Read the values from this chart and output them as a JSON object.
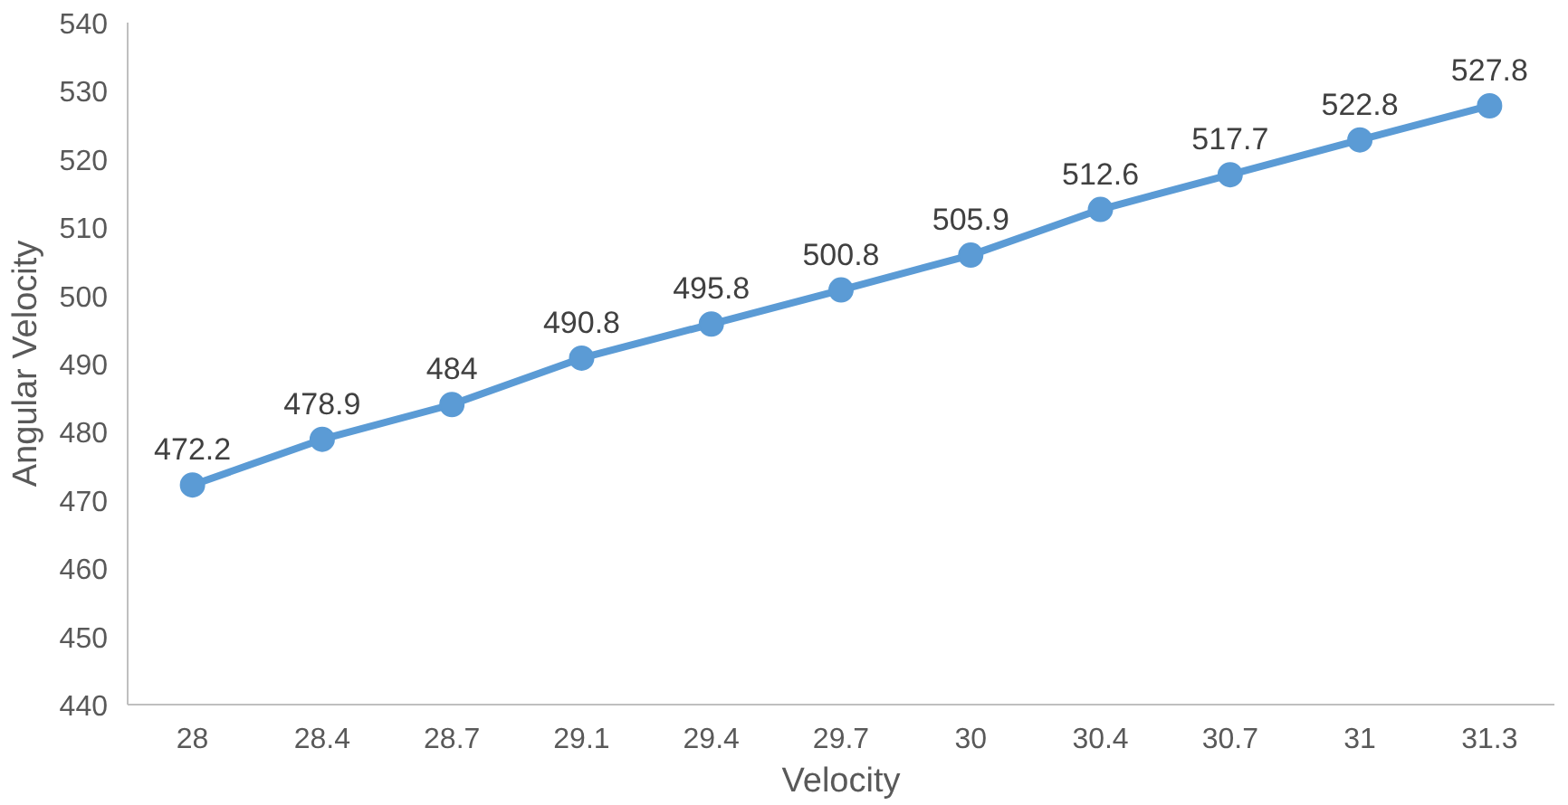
{
  "chart_data": {
    "type": "line",
    "xlabel": "Velocity",
    "ylabel": "Angular Velocity",
    "categories": [
      "28",
      "28.4",
      "28.7",
      "29.1",
      "29.4",
      "29.7",
      "30",
      "30.4",
      "30.7",
      "31",
      "31.3"
    ],
    "series": [
      {
        "color": "#5b9bd5",
        "values": [
          472.2,
          478.9,
          484,
          490.8,
          495.8,
          500.8,
          505.9,
          512.6,
          517.7,
          522.8,
          527.8
        ]
      }
    ],
    "ylim": [
      440,
      540
    ],
    "yticks": [
      440,
      450,
      460,
      470,
      480,
      490,
      500,
      510,
      520,
      530,
      540
    ],
    "data_labels": true,
    "marker": "circle",
    "line_style": "solid"
  }
}
